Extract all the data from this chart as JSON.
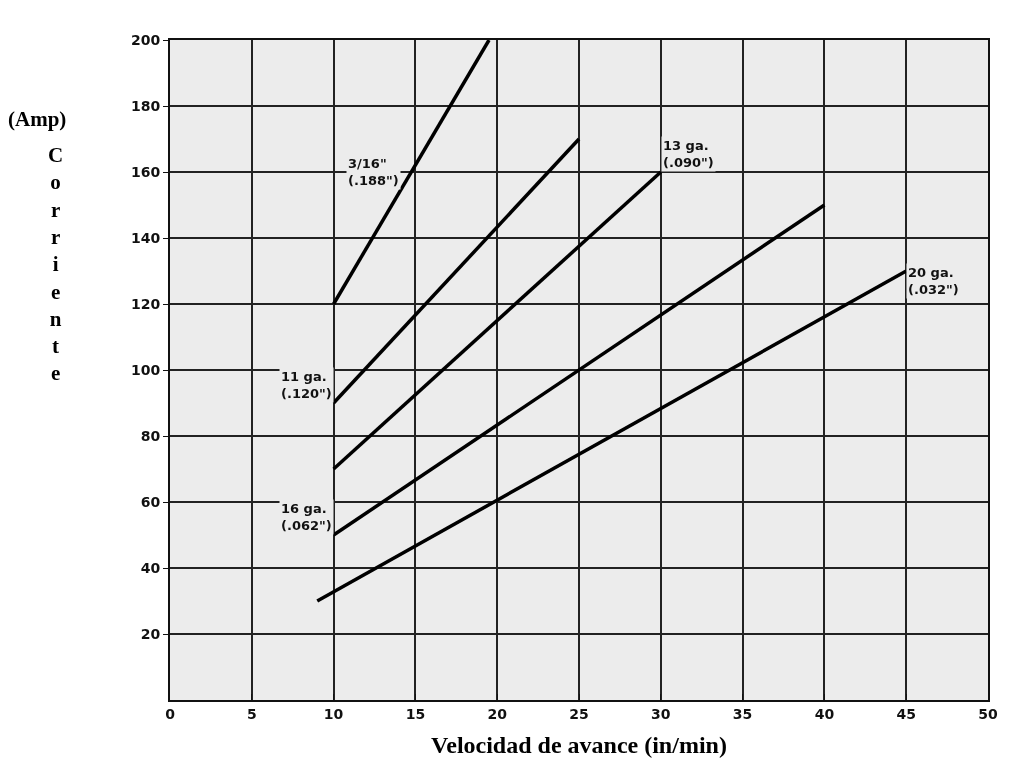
{
  "chart_data": {
    "type": "line",
    "xlabel": "Velocidad de avance (in/min)",
    "ylabel": "Corriente",
    "annotations": [
      "(Amp)"
    ],
    "xlim": [
      0,
      50
    ],
    "xticks": [
      0,
      5,
      10,
      15,
      20,
      25,
      30,
      35,
      40,
      45,
      50
    ],
    "ylim": [
      0,
      200
    ],
    "yticks": [
      20,
      40,
      60,
      80,
      100,
      120,
      140,
      160,
      180,
      200
    ],
    "grid": true,
    "legend": false,
    "marker": "none",
    "line_style": "solid",
    "series": [
      {
        "name": "3/16\"\n(.188\")",
        "color": "#000000",
        "x": [
          10,
          19.5
        ],
        "values": [
          120,
          200
        ]
      },
      {
        "name": "11 ga.\n(.120\")",
        "color": "#000000",
        "x": [
          10,
          25
        ],
        "values": [
          90,
          170
        ]
      },
      {
        "name": "13 ga.\n(.090\")",
        "color": "#000000",
        "x": [
          10,
          30
        ],
        "values": [
          70,
          160
        ]
      },
      {
        "name": "16 ga.\n(.062\")",
        "color": "#000000",
        "x": [
          10,
          40
        ],
        "values": [
          50,
          150
        ]
      },
      {
        "name": "20 ga.\n(.032\")",
        "color": "#000000",
        "x": [
          9,
          45
        ],
        "values": [
          30,
          130
        ]
      }
    ]
  }
}
